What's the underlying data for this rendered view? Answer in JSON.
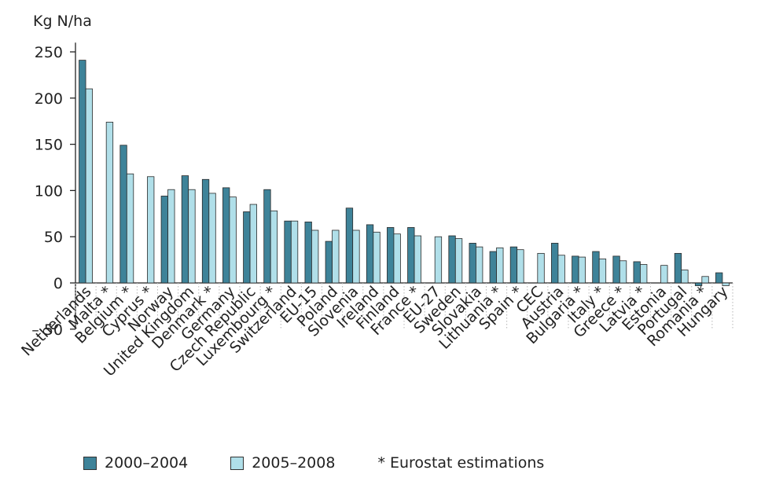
{
  "chart_data": {
    "type": "bar",
    "ylabel": "Kg N/ha",
    "ylim": [
      -50,
      260
    ],
    "yticks": [
      250,
      200,
      150,
      100,
      50,
      0,
      -50
    ],
    "ytick_labels": [
      "250",
      "200",
      "150",
      "100",
      "50",
      "0",
      "– 50"
    ],
    "categories": [
      "Netherlands",
      "Malta *",
      "Belgium *",
      "Cyprus *",
      "Norway",
      "United Kingdom",
      "Denmark *",
      "Germany",
      "Czech Republic",
      "Luxembourg *",
      "Switzerland",
      "EU-15",
      "Poland",
      "Slovenia",
      "Ireland",
      "Finland",
      "France *",
      "EU-27",
      "Sweden",
      "Slovakia",
      "Lithuania *",
      "Spain *",
      "CEC",
      "Austria",
      "Bulgaria *",
      "Italy *",
      "Greece *",
      "Latvia *",
      "Estonia",
      "Portugal",
      "Romania *",
      "Hungary"
    ],
    "series": [
      {
        "name": "2000–2004",
        "color": "#3e8399",
        "values": [
          241,
          null,
          149,
          null,
          94,
          116,
          112,
          103,
          77,
          101,
          67,
          66,
          45,
          81,
          63,
          60,
          60,
          null,
          51,
          43,
          34,
          39,
          null,
          43,
          29,
          34,
          29,
          23,
          null,
          32,
          -3,
          11
        ]
      },
      {
        "name": "2005–2008",
        "color": "#b0dfe9",
        "values": [
          210,
          174,
          118,
          115,
          101,
          101,
          97,
          93,
          85,
          78,
          67,
          57,
          57,
          57,
          55,
          53,
          51,
          50,
          48,
          39,
          38,
          36,
          32,
          30,
          28,
          26,
          24,
          20,
          19,
          14,
          7,
          -3
        ]
      }
    ],
    "grid": false,
    "legend_position": "bottom",
    "footnote": "* Eurostat estimations"
  },
  "legend": {
    "series1": "2000–2004",
    "series2": "2005–2008",
    "note": "* Eurostat estimations"
  },
  "colors": {
    "series1": "#3e8399",
    "series2": "#b0dfe9",
    "axis": "#222222",
    "separator": "#b5b5b5"
  }
}
